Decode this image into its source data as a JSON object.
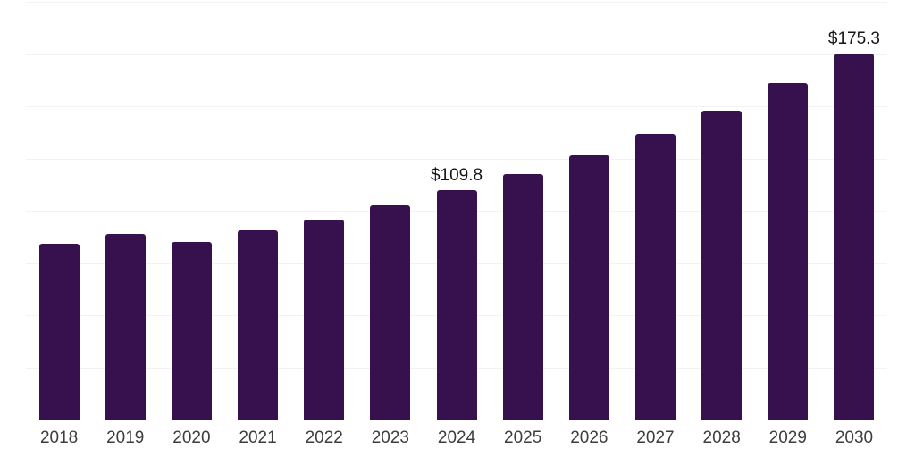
{
  "chart_data": {
    "type": "bar",
    "title": "",
    "xlabel": "",
    "ylabel": "",
    "categories": [
      "2018",
      "2019",
      "2020",
      "2021",
      "2022",
      "2023",
      "2024",
      "2025",
      "2026",
      "2027",
      "2028",
      "2029",
      "2030"
    ],
    "values": [
      84.0,
      89.0,
      85.2,
      90.8,
      95.9,
      102.4,
      109.8,
      117.4,
      126.4,
      136.7,
      147.9,
      161.0,
      175.3
    ],
    "data_labels": {
      "2024": "$109.8",
      "2030": "$175.3"
    },
    "ylim": [
      0,
      200
    ],
    "gridline_step": 25,
    "grid": true,
    "legend": false,
    "value_unit": "USD billions (implied by $ labels)",
    "colors": {
      "bar": "#36114E",
      "gridline": "#F2F2F2",
      "axis_line": "#2B2B2B",
      "tick_label": "#3D3D3D",
      "value_label": "#151515",
      "background": "#FFFFFF"
    }
  }
}
